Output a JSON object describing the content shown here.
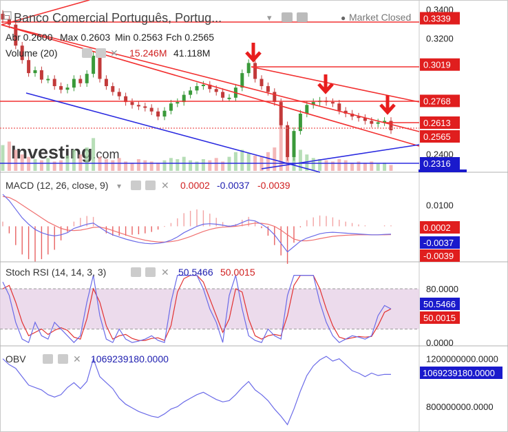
{
  "header": {
    "title": "Banco Comercial Português, Portug...",
    "market_status": "Market Closed",
    "abr": "Abr 0.2600",
    "max": "Max 0.2603",
    "min": "Min 0.2563",
    "fch": "Fch 0.2565",
    "volume_label": "Volume (20)",
    "volume_value": "15.246M",
    "volume_avg": "41.118M",
    "watermark": "Investing",
    "watermark_suffix": ".com"
  },
  "colors": {
    "up": "#3a9a3a",
    "down": "#c23a3a",
    "trendline_red": "#f23030",
    "trendline_blue": "#2a2ae0",
    "macd_line": "#6a6ae8",
    "signal_line": "#f07070",
    "stoch_band": "#e6cfe6"
  },
  "chart_data": [
    {
      "type": "line",
      "name": "price",
      "ylim": [
        0.2275,
        0.3408
      ],
      "yticks": [
        "0.3400",
        "0.3200",
        "0.2400"
      ],
      "values": [
        0.333,
        0.3295,
        0.315,
        0.305,
        0.296,
        0.298,
        0.2915,
        0.292,
        0.287,
        0.2845,
        0.286,
        0.292,
        0.289,
        0.2955,
        0.308,
        0.292,
        0.287,
        0.283,
        0.28,
        0.276,
        0.274,
        0.273,
        0.272,
        0.2695,
        0.266,
        0.27,
        0.275,
        0.276,
        0.281,
        0.284,
        0.287,
        0.288,
        0.285,
        0.283,
        0.279,
        0.279,
        0.286,
        0.296,
        0.303,
        0.292,
        0.287,
        0.283,
        0.276,
        0.26,
        0.238,
        0.256,
        0.268,
        0.274,
        0.276,
        0.277,
        0.276,
        0.275,
        0.27,
        0.268,
        0.266,
        0.265,
        0.263,
        0.261,
        0.262,
        0.263,
        0.2565
      ],
      "price_labels": [
        "0.3339",
        "0.3019",
        "0.2768",
        "0.2613",
        "0.2565",
        "0.2316"
      ],
      "price_levels": [
        0.3339,
        0.3019,
        0.2768,
        0.2613,
        0.2565,
        0.2316
      ],
      "volume": [
        22,
        25,
        18,
        14,
        12,
        10,
        9,
        11,
        8,
        9,
        13,
        18,
        14,
        20,
        28,
        12,
        10,
        9,
        11,
        8,
        7,
        10,
        9,
        8,
        7,
        9,
        11,
        10,
        12,
        9,
        8,
        10,
        9,
        11,
        8,
        12,
        16,
        18,
        15,
        13,
        12,
        16,
        20,
        45,
        30,
        26,
        18,
        14,
        11,
        10,
        9,
        8,
        10,
        9,
        7,
        8,
        7,
        8,
        6,
        7,
        5
      ]
    },
    {
      "type": "line",
      "name": "MACD",
      "label": "MACD (12, 26, close, 9)",
      "values_text": [
        "0.0002",
        "-0.0037",
        "-0.0039"
      ],
      "ylim": [
        -0.016,
        0.015
      ],
      "yticks": [
        "0.0100",
        "0.0002",
        "-0.0037",
        "-0.0039"
      ],
      "macd": [
        0.015,
        0.012,
        0.008,
        0.004,
        0.001,
        -0.0015,
        -0.003,
        -0.004,
        -0.0045,
        -0.004,
        -0.003,
        -0.001,
        0.0,
        0.001,
        0.0015,
        -0.0005,
        -0.0025,
        -0.004,
        -0.005,
        -0.006,
        -0.0068,
        -0.0075,
        -0.008,
        -0.0082,
        -0.008,
        -0.0075,
        -0.0065,
        -0.005,
        -0.003,
        -0.0015,
        0.0,
        0.001,
        0.0012,
        0.001,
        0.0005,
        0.0,
        0.0005,
        0.0018,
        0.003,
        0.0025,
        0.001,
        -0.001,
        -0.004,
        -0.008,
        -0.012,
        -0.0095,
        -0.007,
        -0.0055,
        -0.0045,
        -0.0035,
        -0.003,
        -0.0028,
        -0.003,
        -0.0032,
        -0.0034,
        -0.0036,
        -0.0038,
        -0.004,
        -0.004,
        -0.0038,
        -0.0037
      ],
      "signal": [
        0.014,
        0.0135,
        0.012,
        0.01,
        0.008,
        0.006,
        0.004,
        0.002,
        0.0005,
        -0.001,
        -0.0018,
        -0.002,
        -0.0018,
        -0.0012,
        -0.0005,
        -0.0004,
        -0.001,
        -0.002,
        -0.003,
        -0.004,
        -0.005,
        -0.0058,
        -0.0065,
        -0.007,
        -0.0073,
        -0.0074,
        -0.0072,
        -0.0067,
        -0.0058,
        -0.0048,
        -0.0036,
        -0.0024,
        -0.0015,
        -0.0008,
        -0.0004,
        -0.0002,
        0.0,
        0.0004,
        0.001,
        0.0015,
        0.0014,
        0.001,
        0.0,
        -0.0018,
        -0.004,
        -0.006,
        -0.0068,
        -0.0068,
        -0.0064,
        -0.0058,
        -0.0052,
        -0.0047,
        -0.0044,
        -0.0042,
        -0.0041,
        -0.004,
        -0.004,
        -0.004,
        -0.004,
        -0.004,
        -0.0039
      ]
    },
    {
      "type": "line",
      "name": "Stoch RSI",
      "label": "Stoch RSI (14, 14, 3, 3)",
      "values_text": [
        "50.5466",
        "50.0015"
      ],
      "ylim": [
        -3,
        117
      ],
      "yticks": [
        "80.0000",
        "50.5466",
        "50.0015",
        "0.0000"
      ],
      "band": [
        20,
        80
      ],
      "k": [
        90,
        70,
        30,
        5,
        0,
        30,
        10,
        5,
        30,
        20,
        10,
        0,
        10,
        60,
        100,
        40,
        5,
        0,
        20,
        5,
        0,
        2,
        5,
        10,
        3,
        0,
        60,
        100,
        100,
        100,
        100,
        80,
        50,
        30,
        0,
        70,
        100,
        50,
        10,
        3,
        0,
        20,
        10,
        5,
        70,
        100,
        100,
        100,
        100,
        60,
        30,
        10,
        0,
        5,
        10,
        8,
        5,
        10,
        40,
        55,
        50
      ],
      "d": [
        80,
        85,
        60,
        30,
        10,
        15,
        20,
        12,
        18,
        22,
        18,
        8,
        5,
        35,
        80,
        60,
        25,
        5,
        10,
        12,
        6,
        3,
        3,
        6,
        7,
        3,
        25,
        75,
        95,
        100,
        100,
        90,
        65,
        40,
        15,
        35,
        80,
        75,
        35,
        10,
        5,
        10,
        12,
        10,
        40,
        85,
        100,
        100,
        100,
        80,
        50,
        25,
        8,
        5,
        7,
        9,
        8,
        9,
        25,
        45,
        50
      ]
    },
    {
      "type": "line",
      "name": "OBV",
      "label": "OBV",
      "values_text": [
        "1069239180.0000"
      ],
      "ylim": [
        600000000,
        1290000000
      ],
      "yticks": [
        "1200000000.0000",
        "1069239180.0000",
        "800000000.0000"
      ],
      "values": [
        1200000000,
        1150000000,
        1120000000,
        1050000000,
        980000000,
        960000000,
        940000000,
        900000000,
        880000000,
        900000000,
        960000000,
        1000000000,
        950000000,
        1010000000,
        1200000000,
        1050000000,
        1000000000,
        950000000,
        870000000,
        820000000,
        790000000,
        760000000,
        740000000,
        720000000,
        710000000,
        740000000,
        780000000,
        800000000,
        840000000,
        870000000,
        900000000,
        920000000,
        890000000,
        860000000,
        840000000,
        850000000,
        900000000,
        960000000,
        1010000000,
        940000000,
        900000000,
        850000000,
        780000000,
        720000000,
        650000000,
        780000000,
        930000000,
        1060000000,
        1140000000,
        1190000000,
        1220000000,
        1180000000,
        1200000000,
        1150000000,
        1100000000,
        1080000000,
        1050000000,
        1080000000,
        1060000000,
        1070000000,
        1069239180
      ]
    }
  ]
}
